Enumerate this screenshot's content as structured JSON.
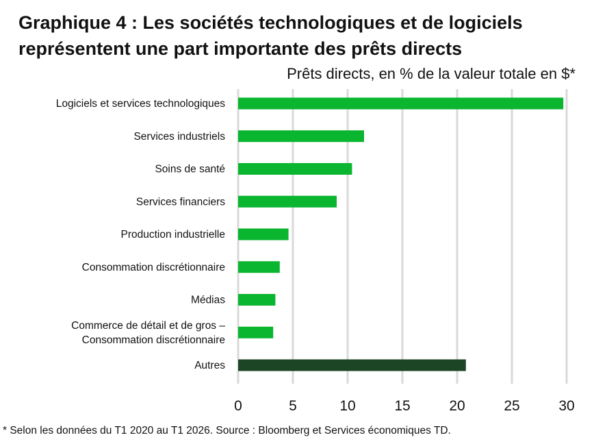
{
  "title": "Graphique 4 : Les sociétés technologiques et de logiciels représentent une part importante des prêts directs",
  "subtitle": "Prêts directs, en % de la valeur totale en $*",
  "footnote": "* Selon les données du T1 2020 au T1 2026. Source : Bloomberg et Services économiques TD.",
  "chart_data": {
    "type": "bar",
    "orientation": "horizontal",
    "title": "Graphique 4 : Les sociétés technologiques et de logiciels représentent une part importante des prêts directs",
    "subtitle": "Prêts directs, en % de la valeur totale en $*",
    "xlabel": "",
    "ylabel": "",
    "xlim": [
      0,
      30
    ],
    "xticks": [
      0,
      5,
      10,
      15,
      20,
      25,
      30
    ],
    "grid": true,
    "categories": [
      [
        "Logiciels et services technologiques"
      ],
      [
        "Services industriels"
      ],
      [
        "Soins de santé"
      ],
      [
        "Services financiers"
      ],
      [
        "Production industrielle"
      ],
      [
        "Consommation discrétionnaire"
      ],
      [
        "Médias"
      ],
      [
        "Commerce de détail et de gros –",
        "Consommation discrétionnaire"
      ],
      [
        "Autres"
      ]
    ],
    "values": [
      29.7,
      11.5,
      10.4,
      9.0,
      4.6,
      3.8,
      3.4,
      3.2,
      20.8
    ],
    "colors": [
      "#0ab52f",
      "#0ab52f",
      "#0ab52f",
      "#0ab52f",
      "#0ab52f",
      "#0ab52f",
      "#0ab52f",
      "#0ab52f",
      "#1c4525"
    ],
    "gridline_color": "#d9d9d9"
  }
}
